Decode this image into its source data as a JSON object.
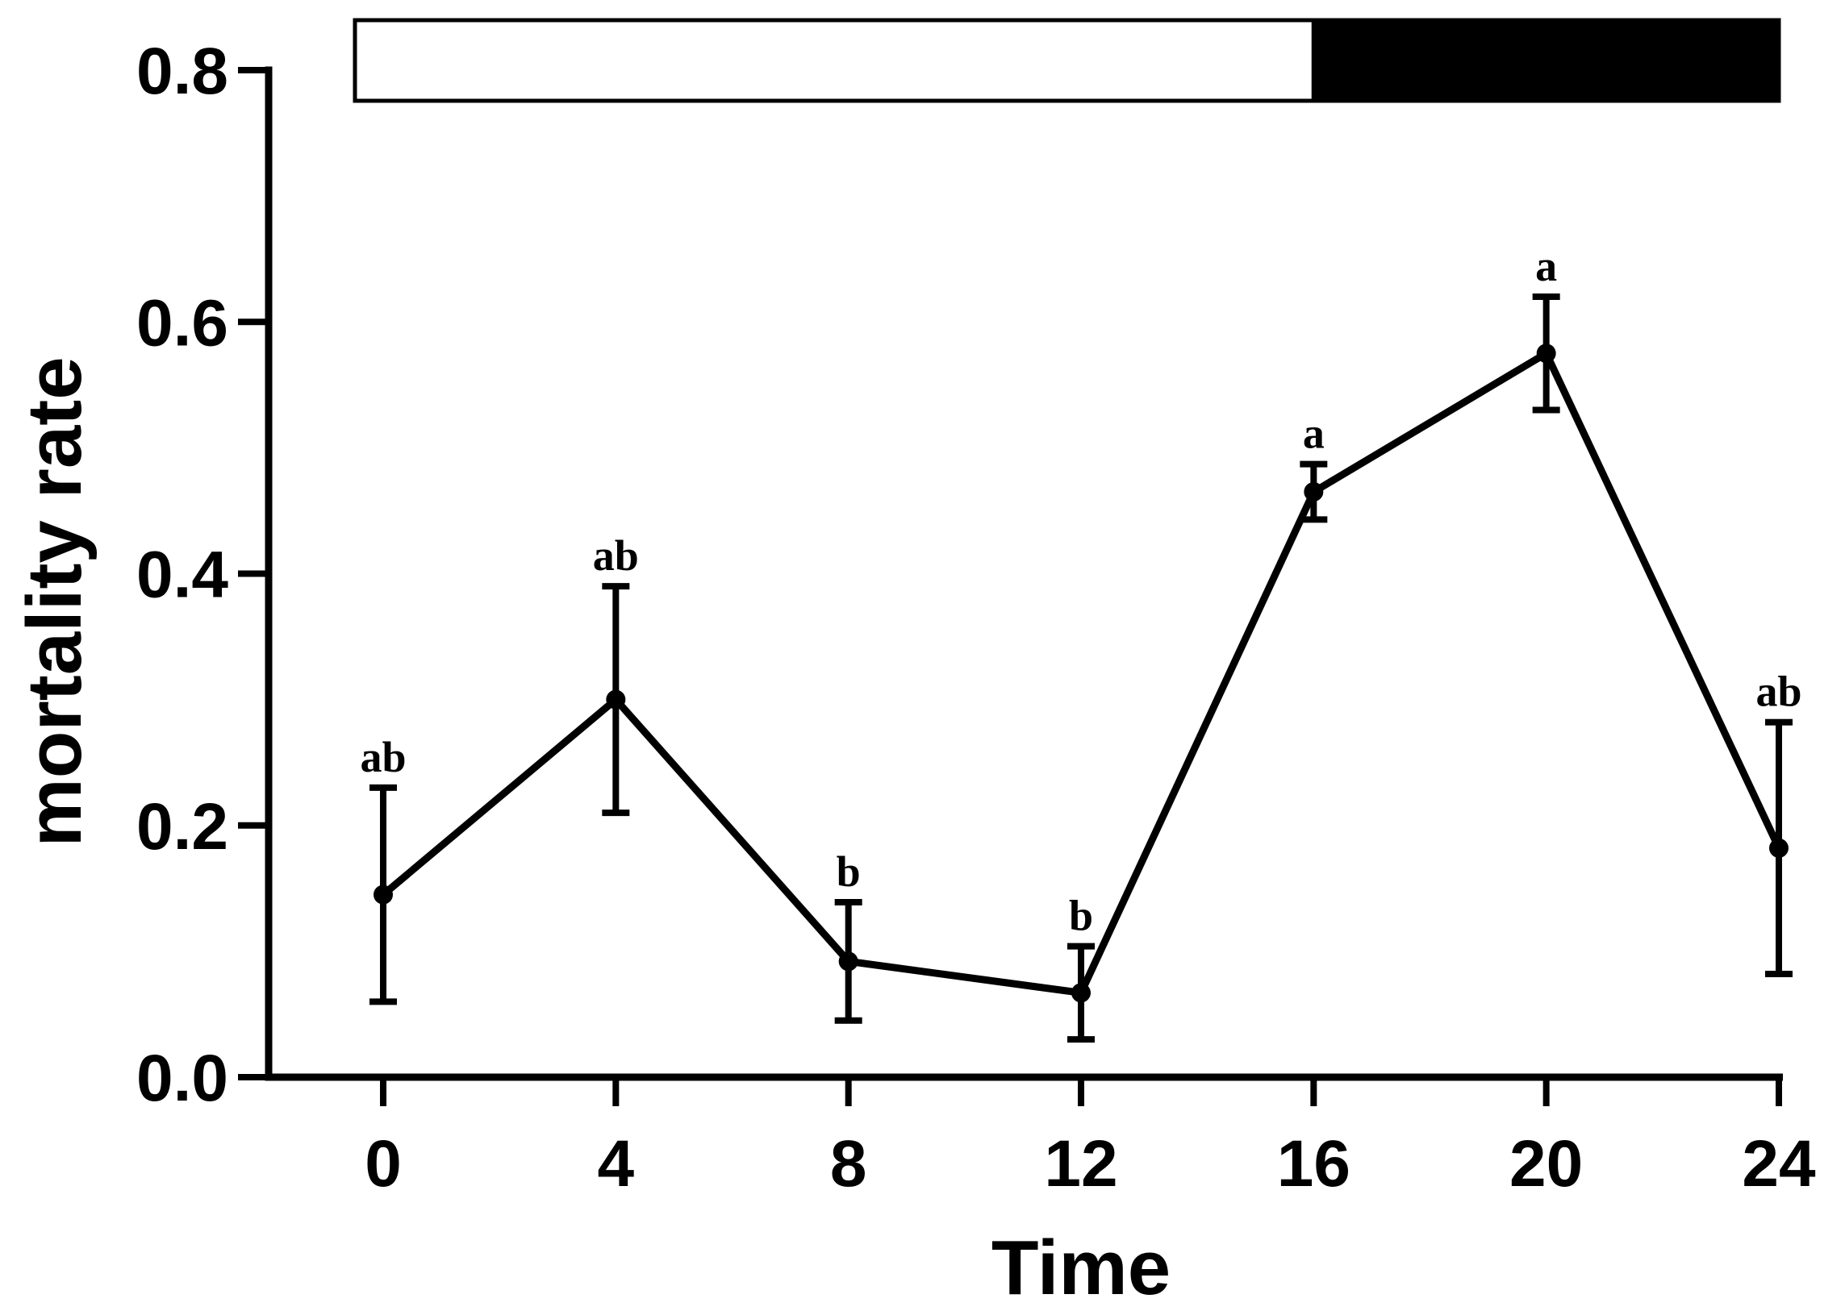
{
  "chart_data": {
    "type": "line",
    "title": "",
    "xlabel": "Time",
    "ylabel": "mortality rate",
    "x": [
      0,
      4,
      8,
      12,
      16,
      20,
      24
    ],
    "xlim": [
      0,
      24
    ],
    "ylim": [
      0,
      0.8
    ],
    "x_ticks": [
      "0",
      "4",
      "8",
      "12",
      "16",
      "20",
      "24"
    ],
    "y_ticks": [
      "0.0",
      "0.2",
      "0.4",
      "0.6",
      "0.8"
    ],
    "grid": false,
    "legend": "none",
    "series": [
      {
        "values": [
          0.145,
          0.3,
          0.092,
          0.067,
          0.465,
          0.575,
          0.182
        ],
        "error": [
          0.085,
          0.09,
          0.047,
          0.037,
          0.022,
          0.045,
          0.1
        ],
        "labels": [
          "ab",
          "ab",
          "b",
          "b",
          "a",
          "a",
          "ab"
        ],
        "color": "#000000"
      }
    ],
    "photoperiod_bar": {
      "light": {
        "from": 0,
        "to": 16,
        "color": "#ffffff"
      },
      "dark": {
        "from": 16,
        "to": 24,
        "color": "#000000"
      }
    }
  }
}
